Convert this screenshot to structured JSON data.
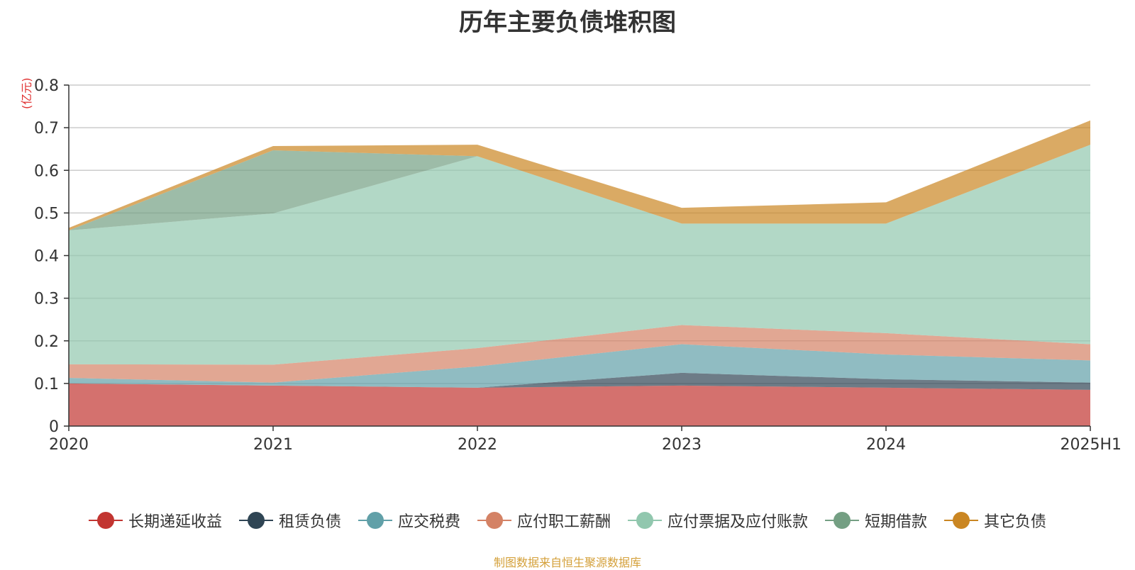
{
  "chart_data": {
    "type": "area",
    "stacked": true,
    "title": "历年主要负债堆积图",
    "ylabel": "(亿元)",
    "ylim": [
      0,
      0.8
    ],
    "yticks": [
      "0",
      "0.1",
      "0.2",
      "0.3",
      "0.4",
      "0.5",
      "0.6",
      "0.7",
      "0.8"
    ],
    "categories": [
      "2020",
      "2021",
      "2022",
      "2023",
      "2024",
      "2025H1"
    ],
    "grid": true,
    "legend_position": "bottom",
    "series": [
      {
        "name": "长期递延收益",
        "color": "#c23531",
        "values": [
          0.1,
          0.095,
          0.09,
          0.095,
          0.09,
          0.085
        ]
      },
      {
        "name": "租赁负债",
        "color": "#2f4554",
        "values": [
          0.0,
          0.0,
          0.0,
          0.03,
          0.02,
          0.017
        ]
      },
      {
        "name": "应交税费",
        "color": "#61a0a8",
        "values": [
          0.013,
          0.007,
          0.05,
          0.067,
          0.058,
          0.052
        ]
      },
      {
        "name": "应付职工薪酬",
        "color": "#d48265",
        "values": [
          0.032,
          0.042,
          0.043,
          0.045,
          0.05,
          0.038
        ]
      },
      {
        "name": "应付票据及应付账款",
        "color": "#91c7ae",
        "values": [
          0.314,
          0.355,
          0.45,
          0.238,
          0.257,
          0.468
        ]
      },
      {
        "name": "短期借款",
        "color": "#749f83",
        "values": [
          0.0,
          0.148,
          0.0,
          0.0,
          0.0,
          0.0
        ]
      },
      {
        "name": "其它负债",
        "color": "#ca8622",
        "values": [
          0.006,
          0.01,
          0.027,
          0.037,
          0.05,
          0.057
        ]
      }
    ]
  },
  "source_note": "制图数据来自恒生聚源数据库"
}
